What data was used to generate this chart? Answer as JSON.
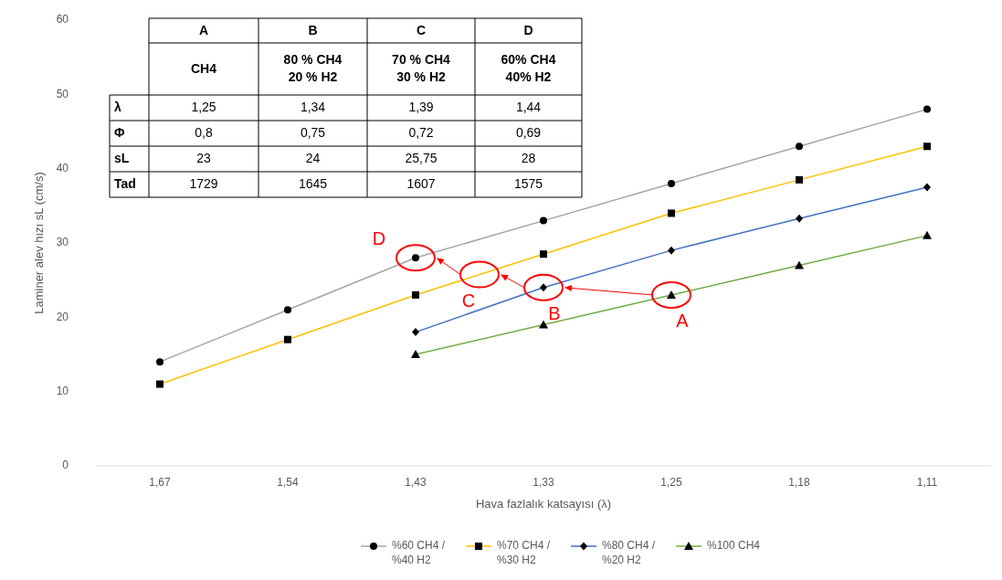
{
  "chart_data": [
    {
      "type": "line",
      "xlabel": "Hava fazlalık katsayısı (λ)",
      "ylabel": "Laminer alev hızı sL (cm/s)",
      "categories": [
        "1,67",
        "1,54",
        "1,43",
        "1,33",
        "1,25",
        "1,18",
        "1,11"
      ],
      "ylim": [
        0,
        60
      ],
      "yticks": [
        0,
        10,
        20,
        30,
        40,
        50,
        60
      ],
      "legend": "bottom",
      "series": [
        {
          "name": "%60 CH4 /\n%40 H2",
          "color": "#a5a5a5",
          "marker": "circle",
          "values": [
            14,
            21,
            28,
            33,
            38,
            43,
            48
          ]
        },
        {
          "name": "%70 CH4 /\n%30 H2",
          "color": "#ffc000",
          "marker": "square",
          "values": [
            11,
            17,
            23,
            28.5,
            34,
            38.5,
            43
          ]
        },
        {
          "name": "%80 CH4 /\n%20 H2",
          "color": "#4472c4",
          "marker": "diamond",
          "values": [
            null,
            null,
            18,
            24,
            29,
            33.3,
            37.5
          ]
        },
        {
          "name": "%100 CH4",
          "color": "#70ad47",
          "marker": "triangle",
          "values": [
            null,
            null,
            15,
            19,
            23,
            27,
            31
          ]
        }
      ],
      "annotations": [
        {
          "text": "A",
          "x": "1,25",
          "y": 23
        },
        {
          "text": "B",
          "x": "1,33",
          "y": 24
        },
        {
          "text": "C",
          "y": 25.75
        },
        {
          "text": "D",
          "x": "1,43",
          "y": 28
        }
      ]
    },
    {
      "type": "other",
      "categories": [
        "A",
        "B",
        "C",
        "D"
      ],
      "annotations": [
        "CH4",
        "80 % CH4\n20 % H2",
        "70 % CH4\n30 % H2",
        "60% CH4\n40% H2"
      ],
      "y_categories": [
        "λ",
        "Φ",
        "sL",
        "Tad"
      ],
      "cell_labels": [
        [
          "1,25",
          "1,34",
          "1,39",
          "1,44"
        ],
        [
          "0,8",
          "0,75",
          "0,72",
          "0,69"
        ],
        [
          "23",
          "24",
          "25,75",
          "28"
        ],
        [
          "1729",
          "1645",
          "1607",
          "1575"
        ]
      ]
    }
  ]
}
